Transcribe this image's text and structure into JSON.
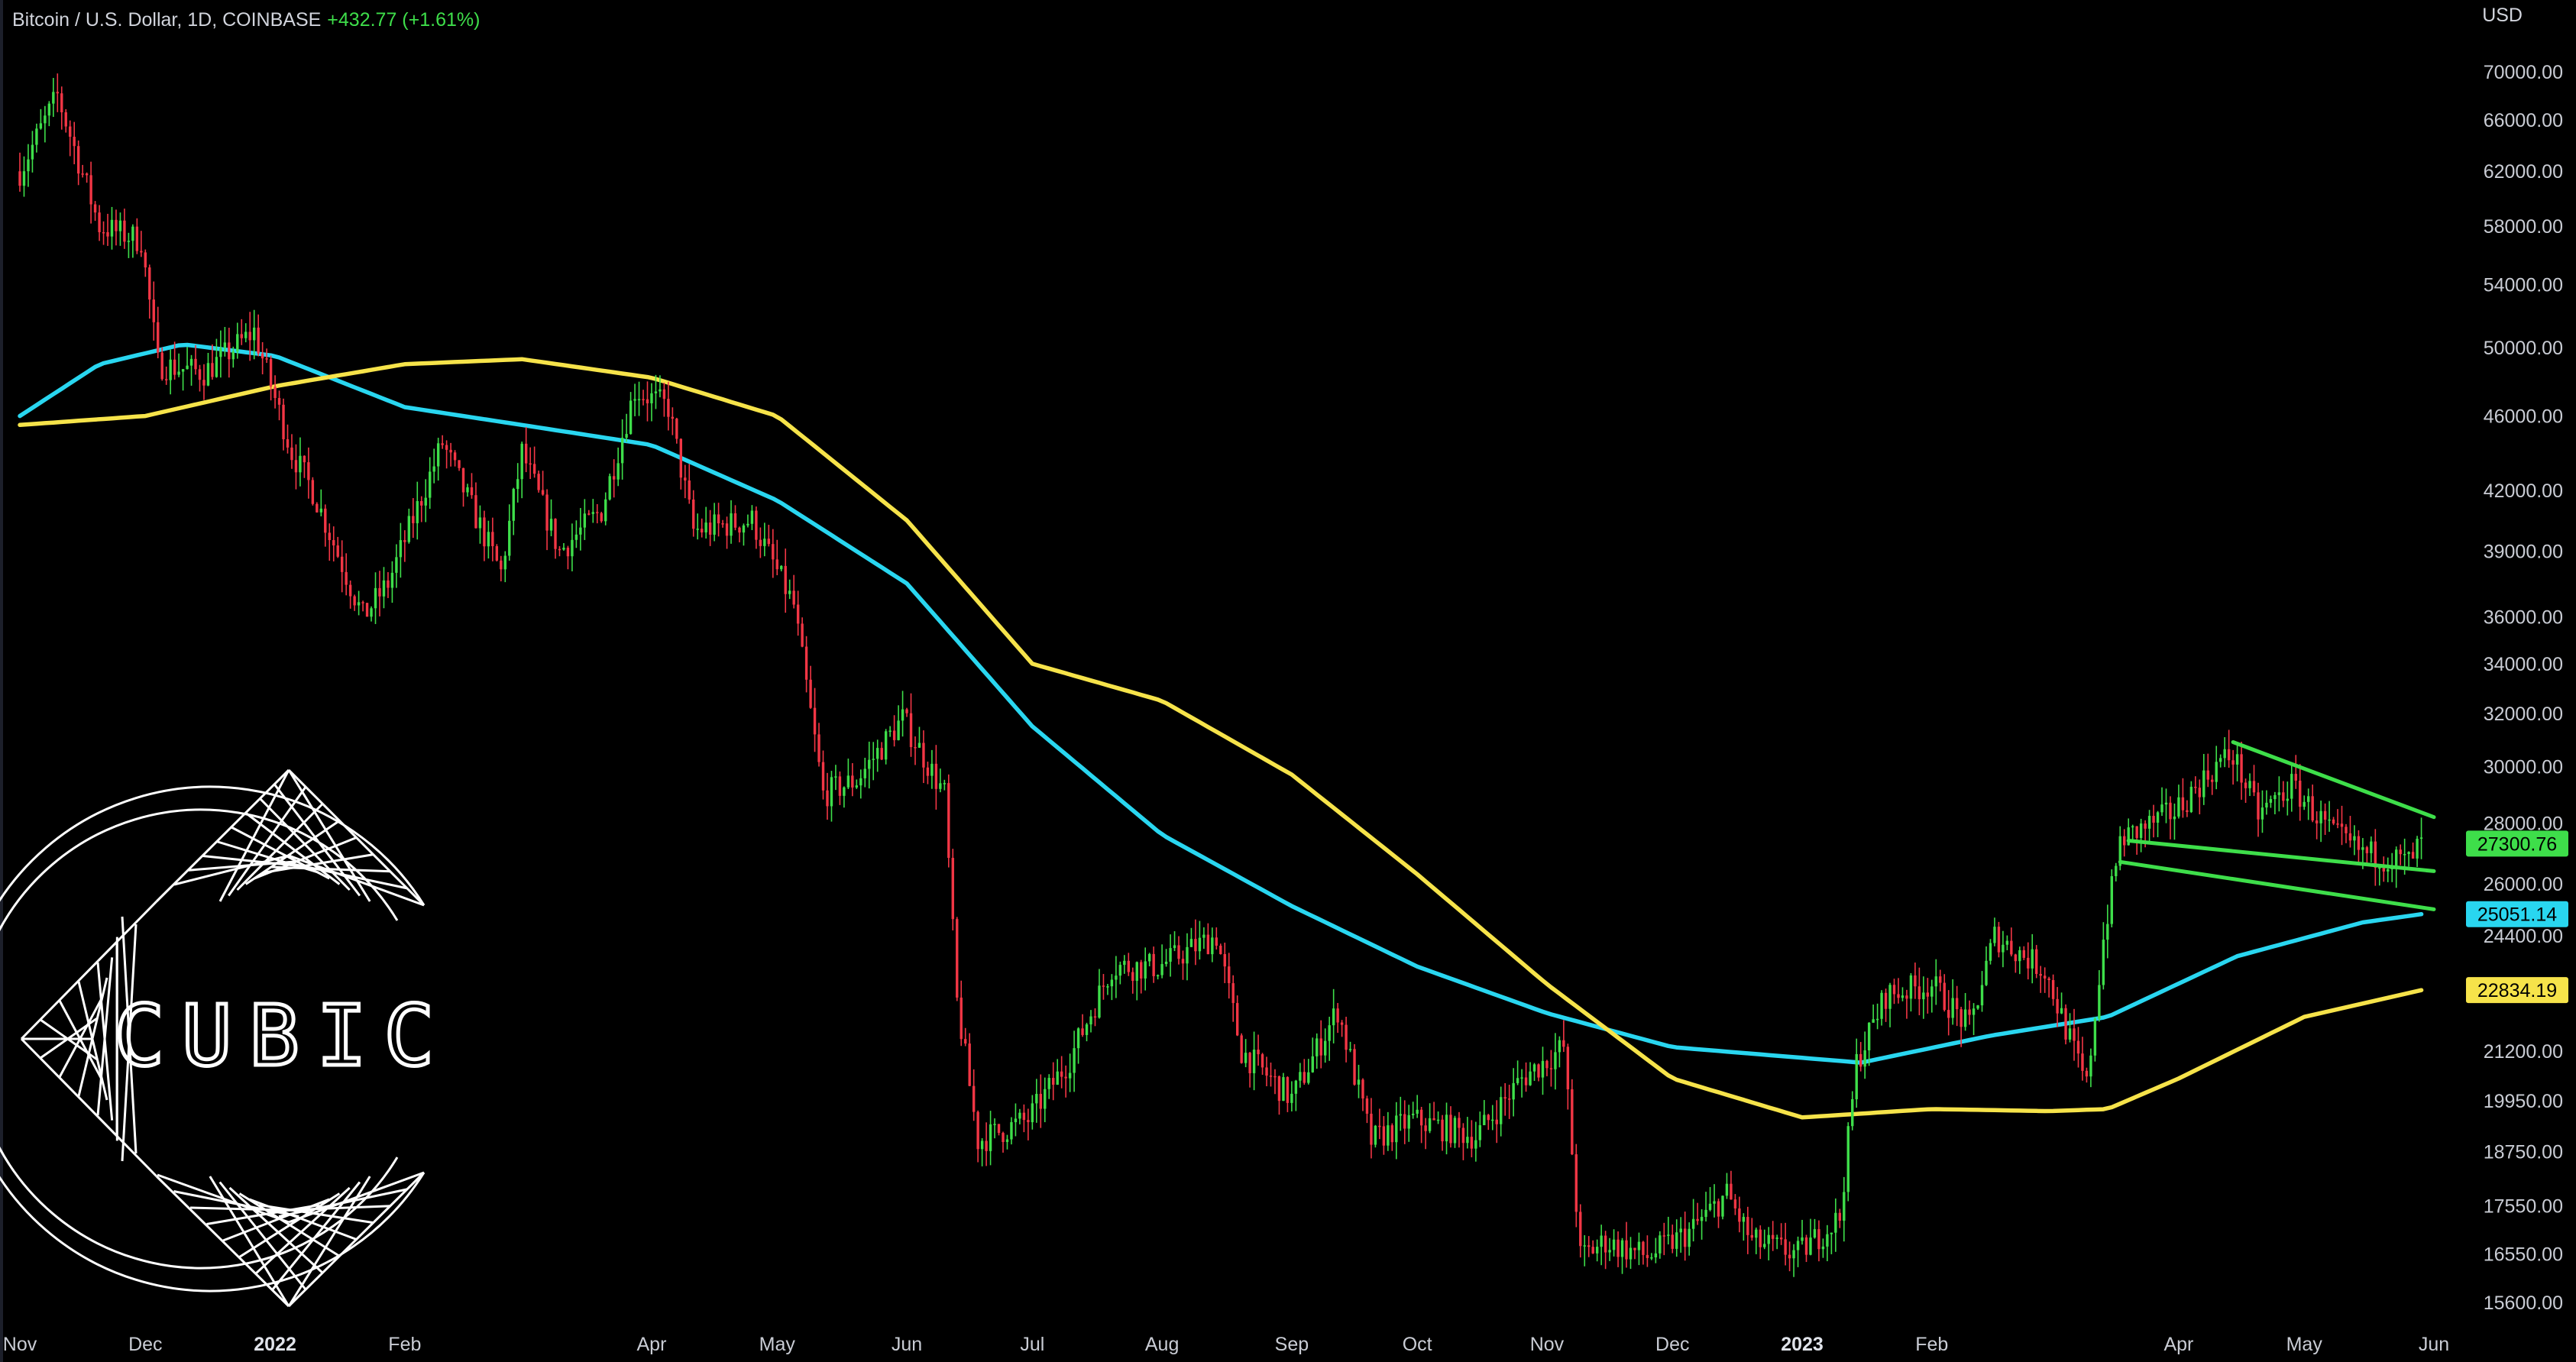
{
  "header": {
    "symbol": "Bitcoin / U.S. Dollar, 1D, COINBASE",
    "change": "+432.77 (+1.61%)"
  },
  "currency": "USD",
  "logo": {
    "text": "CUBIC"
  },
  "colors": {
    "up": "#3ede4a",
    "down": "#f23645",
    "ma_fast": "#29d6f0",
    "ma_slow": "#f6e34a",
    "channel": "#3ede4a",
    "background": "#000000"
  },
  "chart_data": {
    "type": "candlestick",
    "title": "",
    "yscale": "log",
    "ylim": [
      15000,
      72000
    ],
    "y_ticks": [
      "70000.00",
      "66000.00",
      "62000.00",
      "58000.00",
      "54000.00",
      "50000.00",
      "46000.00",
      "42000.00",
      "39000.00",
      "36000.00",
      "34000.00",
      "32000.00",
      "30000.00",
      "28000.00",
      "26000.00",
      "24400.00",
      "21200.00",
      "19950.00",
      "18750.00",
      "17550.00",
      "16550.00",
      "15600.00"
    ],
    "x_ticks": [
      {
        "label": "Nov",
        "date": "2021-11-01"
      },
      {
        "label": "Dec",
        "date": "2021-12-01"
      },
      {
        "label": "2022",
        "date": "2022-01-01",
        "bold": true
      },
      {
        "label": "Feb",
        "date": "2022-02-01"
      },
      {
        "label": "Apr",
        "date": "2022-04-01"
      },
      {
        "label": "May",
        "date": "2022-05-01"
      },
      {
        "label": "Jun",
        "date": "2022-06-01"
      },
      {
        "label": "Jul",
        "date": "2022-07-01"
      },
      {
        "label": "Aug",
        "date": "2022-08-01"
      },
      {
        "label": "Sep",
        "date": "2022-09-01"
      },
      {
        "label": "Oct",
        "date": "2022-10-01"
      },
      {
        "label": "Nov",
        "date": "2022-11-01"
      },
      {
        "label": "Dec",
        "date": "2022-12-01"
      },
      {
        "label": "2023",
        "date": "2023-01-01",
        "bold": true
      },
      {
        "label": "Feb",
        "date": "2023-02-01"
      },
      {
        "label": "Apr",
        "date": "2023-04-01"
      },
      {
        "label": "May",
        "date": "2023-05-01"
      },
      {
        "label": "Jun",
        "date": "2023-06-01"
      }
    ],
    "price_path": [
      [
        "2021-11-01",
        62000
      ],
      [
        "2021-11-10",
        68000
      ],
      [
        "2021-11-20",
        58000
      ],
      [
        "2021-11-30",
        57000
      ],
      [
        "2021-12-04",
        49000
      ],
      [
        "2021-12-15",
        48500
      ],
      [
        "2021-12-27",
        51000
      ],
      [
        "2022-01-05",
        44000
      ],
      [
        "2022-01-10",
        42000
      ],
      [
        "2022-01-22",
        36000
      ],
      [
        "2022-01-28",
        37500
      ],
      [
        "2022-02-10",
        44500
      ],
      [
        "2022-02-24",
        38000
      ],
      [
        "2022-03-01",
        44000
      ],
      [
        "2022-03-10",
        39000
      ],
      [
        "2022-03-20",
        41000
      ],
      [
        "2022-03-28",
        47500
      ],
      [
        "2022-04-05",
        46500
      ],
      [
        "2022-04-11",
        40000
      ],
      [
        "2022-04-25",
        40500
      ],
      [
        "2022-05-05",
        36500
      ],
      [
        "2022-05-12",
        29000
      ],
      [
        "2022-05-20",
        29500
      ],
      [
        "2022-05-31",
        31800
      ],
      [
        "2022-06-10",
        29000
      ],
      [
        "2022-06-13",
        22500
      ],
      [
        "2022-06-18",
        19000
      ],
      [
        "2022-06-30",
        19500
      ],
      [
        "2022-07-10",
        21000
      ],
      [
        "2022-07-20",
        23500
      ],
      [
        "2022-07-31",
        23500
      ],
      [
        "2022-08-14",
        24400
      ],
      [
        "2022-08-20",
        21200
      ],
      [
        "2022-09-01",
        20000
      ],
      [
        "2022-09-12",
        22300
      ],
      [
        "2022-09-20",
        19000
      ],
      [
        "2022-09-30",
        19500
      ],
      [
        "2022-10-15",
        19100
      ],
      [
        "2022-10-26",
        20500
      ],
      [
        "2022-11-05",
        21300
      ],
      [
        "2022-11-09",
        16500
      ],
      [
        "2022-11-15",
        16800
      ],
      [
        "2022-11-25",
        16500
      ],
      [
        "2022-12-05",
        17000
      ],
      [
        "2022-12-14",
        17800
      ],
      [
        "2022-12-20",
        16800
      ],
      [
        "2022-12-31",
        16550
      ],
      [
        "2023-01-10",
        17300
      ],
      [
        "2023-01-14",
        20900
      ],
      [
        "2023-01-21",
        22700
      ],
      [
        "2023-02-01",
        23000
      ],
      [
        "2023-02-10",
        21800
      ],
      [
        "2023-02-16",
        24400
      ],
      [
        "2023-02-28",
        23400
      ],
      [
        "2023-03-10",
        20300
      ],
      [
        "2023-03-14",
        24300
      ],
      [
        "2023-03-18",
        27400
      ],
      [
        "2023-03-31",
        28400
      ],
      [
        "2023-04-11",
        30200
      ],
      [
        "2023-04-14",
        30400
      ],
      [
        "2023-04-20",
        28300
      ],
      [
        "2023-04-28",
        29300
      ],
      [
        "2023-05-08",
        27600
      ],
      [
        "2023-05-15",
        27000
      ],
      [
        "2023-05-22",
        26800
      ],
      [
        "2023-05-26",
        26700
      ],
      [
        "2023-05-29",
        27300
      ]
    ],
    "series": [
      {
        "kind": "moving-average",
        "color": "#29d6f0",
        "points": [
          [
            "2021-11-01",
            46000
          ],
          [
            "2021-11-20",
            49000
          ],
          [
            "2021-12-10",
            50200
          ],
          [
            "2022-01-01",
            49500
          ],
          [
            "2022-02-01",
            46500
          ],
          [
            "2022-03-01",
            45500
          ],
          [
            "2022-04-01",
            44400
          ],
          [
            "2022-05-01",
            41500
          ],
          [
            "2022-06-01",
            37500
          ],
          [
            "2022-07-01",
            31500
          ],
          [
            "2022-08-01",
            27600
          ],
          [
            "2022-09-01",
            25300
          ],
          [
            "2022-10-01",
            23500
          ],
          [
            "2022-11-01",
            22200
          ],
          [
            "2022-12-01",
            21300
          ],
          [
            "2023-01-15",
            20900
          ],
          [
            "2023-02-15",
            21600
          ],
          [
            "2023-03-15",
            22100
          ],
          [
            "2023-04-15",
            23800
          ],
          [
            "2023-05-15",
            24800
          ],
          [
            "2023-05-29",
            25051.14
          ]
        ]
      },
      {
        "kind": "moving-average",
        "color": "#f6e34a",
        "points": [
          [
            "2021-11-01",
            45500
          ],
          [
            "2021-12-01",
            46000
          ],
          [
            "2022-01-01",
            47700
          ],
          [
            "2022-02-01",
            49000
          ],
          [
            "2022-03-01",
            49300
          ],
          [
            "2022-04-01",
            48200
          ],
          [
            "2022-05-01",
            46000
          ],
          [
            "2022-06-01",
            40500
          ],
          [
            "2022-07-01",
            34000
          ],
          [
            "2022-08-01",
            32500
          ],
          [
            "2022-09-01",
            29700
          ],
          [
            "2022-10-01",
            26300
          ],
          [
            "2022-11-01",
            23000
          ],
          [
            "2022-12-01",
            20500
          ],
          [
            "2023-01-01",
            19550
          ],
          [
            "2023-02-01",
            19750
          ],
          [
            "2023-03-01",
            19700
          ],
          [
            "2023-03-15",
            19750
          ],
          [
            "2023-04-01",
            20500
          ],
          [
            "2023-05-01",
            22100
          ],
          [
            "2023-05-29",
            22834.19
          ]
        ]
      },
      {
        "kind": "trendline",
        "color": "#3ede4a",
        "points": [
          [
            "2023-04-14",
            30900
          ],
          [
            "2023-06-01",
            28200
          ]
        ]
      },
      {
        "kind": "trendline",
        "color": "#3ede4a",
        "points": [
          [
            "2023-03-20",
            27400
          ],
          [
            "2023-06-01",
            26400
          ]
        ]
      },
      {
        "kind": "trendline",
        "color": "#3ede4a",
        "points": [
          [
            "2023-03-18",
            26700
          ],
          [
            "2023-06-01",
            25200
          ]
        ]
      }
    ],
    "price_labels": [
      {
        "value": "27300.76",
        "color": "#3ede4a",
        "price": 27300.76
      },
      {
        "value": "25051.14",
        "color": "#29d6f0",
        "price": 25051.14
      },
      {
        "value": "22834.19",
        "color": "#f6e34a",
        "price": 22834.19
      }
    ],
    "grid": false,
    "legend": "none"
  }
}
